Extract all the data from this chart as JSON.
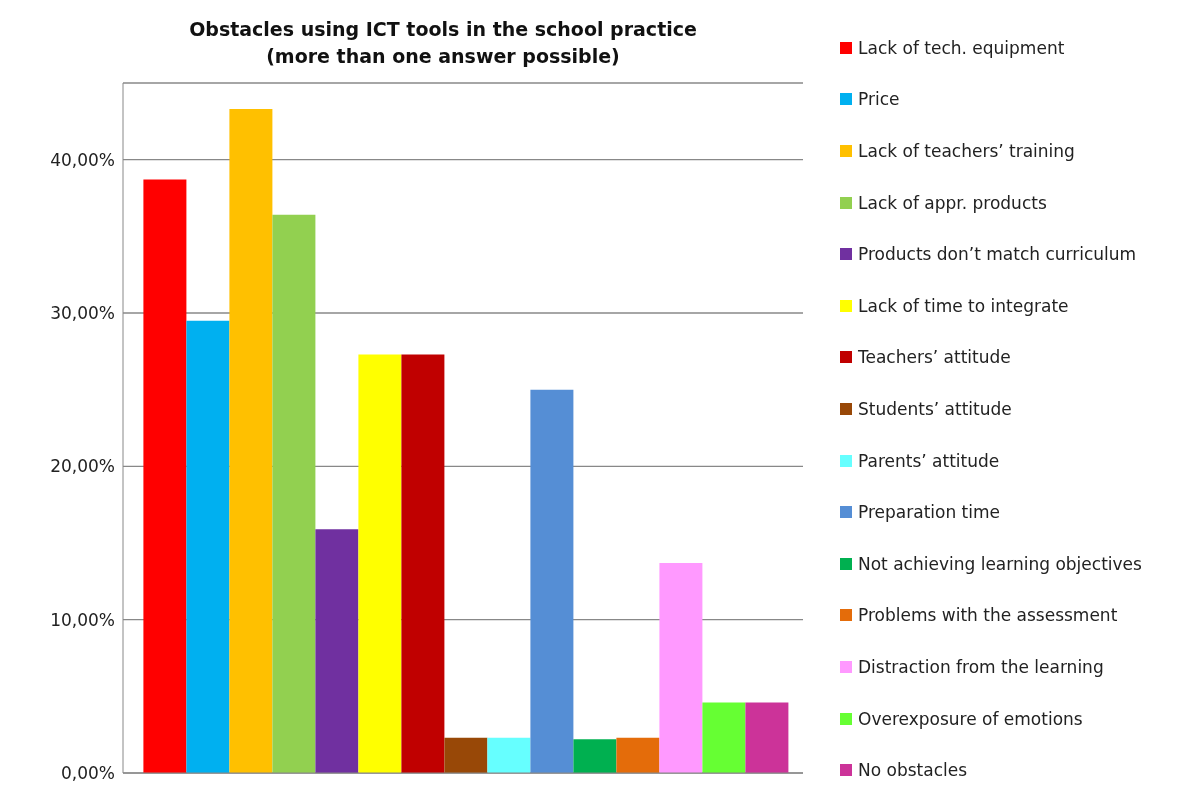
{
  "chart_data": {
    "type": "bar",
    "title": "Obstacles using ICT tools in the school practice\n(more than one answer possible)",
    "categories": [
      null
    ],
    "series": [
      {
        "name": "Lack of tech. equipment",
        "color": "#ff0000",
        "values": [
          38.7
        ]
      },
      {
        "name": "Price",
        "color": "#00b0f0",
        "values": [
          29.5
        ]
      },
      {
        "name": "Lack of teachers’ training",
        "color": "#ffc000",
        "values": [
          43.3
        ]
      },
      {
        "name": "Lack of appr.  products",
        "color": "#92d050",
        "values": [
          36.4
        ]
      },
      {
        "name": "Products don’t match curriculum",
        "color": "#7030a0",
        "values": [
          15.9
        ]
      },
      {
        "name": "Lack of time to integrate",
        "color": "#ffff00",
        "values": [
          27.3
        ]
      },
      {
        "name": "Teachers’ attitude",
        "color": "#c00000",
        "values": [
          27.3
        ]
      },
      {
        "name": "Students’ attitude",
        "color": "#984807",
        "values": [
          2.3
        ]
      },
      {
        "name": "Parents’ attitude",
        "color": "#66ffff",
        "values": [
          2.3
        ]
      },
      {
        "name": "Preparation time",
        "color": "#558ed5",
        "values": [
          25.0
        ]
      },
      {
        "name": "Not achieving learning objectives",
        "color": "#00b050",
        "values": [
          2.2
        ]
      },
      {
        "name": "Problems with the assessment",
        "color": "#e46c0a",
        "values": [
          2.3
        ]
      },
      {
        "name": "Distraction from the learning",
        "color": "#ff99ff",
        "values": [
          13.7
        ]
      },
      {
        "name": "Overexposure of emotions",
        "color": "#66ff33",
        "values": [
          4.6
        ]
      },
      {
        "name": "No obstacles",
        "color": "#cc3399",
        "values": [
          4.6
        ]
      }
    ],
    "ylim": [
      0,
      45
    ],
    "yticks": [
      {
        "value": 0,
        "label": "0,00%"
      },
      {
        "value": 10,
        "label": "10,00%"
      },
      {
        "value": 20,
        "label": "20,00%"
      },
      {
        "value": 30,
        "label": "30,00%"
      },
      {
        "value": 40,
        "label": "40,00%"
      }
    ],
    "grid": "y",
    "legend": "right"
  }
}
